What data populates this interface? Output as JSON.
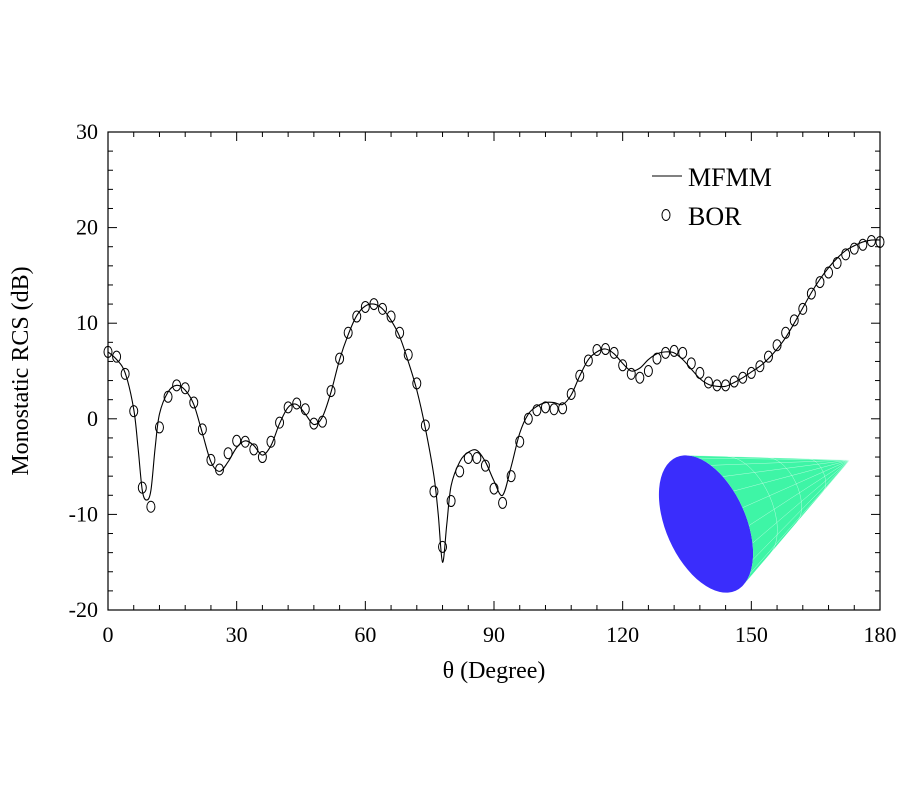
{
  "chart_data": {
    "type": "line",
    "title": "",
    "xlabel": "θ (Degree)",
    "ylabel": "Monostatic RCS (dB)",
    "xlim": [
      0,
      180
    ],
    "ylim": [
      -20,
      30
    ],
    "x_ticks": [
      0,
      30,
      60,
      90,
      120,
      150,
      180
    ],
    "y_ticks": [
      -20,
      -10,
      0,
      10,
      20,
      30
    ],
    "x_tick_labels": [
      "0",
      "30",
      "60",
      "90",
      "120",
      "150",
      "180"
    ],
    "y_tick_labels": [
      "-20",
      "-10",
      "0",
      "10",
      "20",
      "30"
    ],
    "grid": false,
    "legend_position": "top-right",
    "series": [
      {
        "name": "MFMM",
        "style": "solid-line",
        "x": [
          0,
          2,
          4,
          6,
          7,
          8,
          9,
          10,
          11,
          12,
          14,
          16,
          18,
          20,
          22,
          24,
          26,
          28,
          30,
          32,
          34,
          36,
          38,
          40,
          42,
          44,
          46,
          48,
          50,
          52,
          54,
          56,
          58,
          60,
          62,
          64,
          66,
          68,
          70,
          72,
          74,
          76,
          77,
          78,
          79,
          80,
          82,
          84,
          86,
          88,
          90,
          92,
          94,
          96,
          98,
          100,
          102,
          104,
          106,
          108,
          110,
          112,
          114,
          116,
          118,
          120,
          122,
          124,
          126,
          128,
          130,
          132,
          134,
          136,
          138,
          140,
          142,
          144,
          146,
          148,
          150,
          152,
          154,
          156,
          158,
          160,
          162,
          164,
          166,
          168,
          170,
          172,
          174,
          176,
          178,
          180
        ],
        "y": [
          7.0,
          6.2,
          4.8,
          1.0,
          -3.0,
          -7.5,
          -8.5,
          -7.5,
          -3.0,
          0.5,
          2.8,
          3.5,
          3.0,
          1.5,
          -1.5,
          -4.5,
          -5.5,
          -4.5,
          -3.0,
          -2.3,
          -2.8,
          -3.8,
          -2.8,
          -0.5,
          1.2,
          1.5,
          0.5,
          -0.6,
          0.2,
          2.8,
          6.2,
          8.8,
          10.8,
          11.8,
          12.0,
          11.5,
          10.3,
          8.6,
          6.0,
          3.0,
          -1.0,
          -6.0,
          -10.0,
          -15.0,
          -11.0,
          -7.0,
          -4.5,
          -3.5,
          -3.3,
          -4.5,
          -6.5,
          -8.0,
          -5.0,
          -1.5,
          0.5,
          1.3,
          1.7,
          1.7,
          1.5,
          2.5,
          4.5,
          6.2,
          7.0,
          7.3,
          6.8,
          5.8,
          5.0,
          5.3,
          6.2,
          6.8,
          7.0,
          6.9,
          6.2,
          5.2,
          4.2,
          3.6,
          3.4,
          3.4,
          3.8,
          4.3,
          4.9,
          5.5,
          6.3,
          7.3,
          8.5,
          10.0,
          11.6,
          13.2,
          14.6,
          15.8,
          16.8,
          17.6,
          18.1,
          18.5,
          18.7,
          18.7
        ]
      },
      {
        "name": "BOR",
        "style": "open-circle-markers",
        "x": [
          0,
          2,
          4,
          6,
          8,
          10,
          12,
          14,
          16,
          18,
          20,
          22,
          24,
          26,
          28,
          30,
          32,
          34,
          36,
          38,
          40,
          42,
          44,
          46,
          48,
          50,
          52,
          54,
          56,
          58,
          60,
          62,
          64,
          66,
          68,
          70,
          72,
          74,
          76,
          78,
          80,
          82,
          84,
          86,
          88,
          90,
          92,
          94,
          96,
          98,
          100,
          102,
          104,
          106,
          108,
          110,
          112,
          114,
          116,
          118,
          120,
          122,
          124,
          126,
          128,
          130,
          132,
          134,
          136,
          138,
          140,
          142,
          144,
          146,
          148,
          150,
          152,
          154,
          156,
          158,
          160,
          162,
          164,
          166,
          168,
          170,
          172,
          174,
          176,
          178,
          180
        ],
        "y": [
          7.0,
          6.5,
          4.7,
          0.8,
          -7.2,
          -9.2,
          -0.9,
          2.3,
          3.5,
          3.2,
          1.7,
          -1.1,
          -4.3,
          -5.3,
          -3.6,
          -2.3,
          -2.4,
          -3.2,
          -4.0,
          -2.4,
          -0.4,
          1.2,
          1.6,
          1.0,
          -0.5,
          -0.3,
          2.9,
          6.3,
          9.0,
          10.7,
          11.7,
          12.0,
          11.5,
          10.7,
          9.0,
          6.7,
          3.7,
          -0.7,
          -7.6,
          -13.4,
          -8.6,
          -5.5,
          -4.1,
          -4.1,
          -4.9,
          -7.3,
          -8.8,
          -6.0,
          -2.4,
          0.0,
          0.9,
          1.2,
          1.0,
          1.1,
          2.6,
          4.5,
          6.1,
          7.2,
          7.3,
          6.9,
          5.6,
          4.7,
          4.3,
          5.0,
          6.3,
          6.9,
          7.1,
          6.9,
          5.8,
          4.8,
          3.8,
          3.5,
          3.5,
          3.9,
          4.3,
          4.8,
          5.5,
          6.5,
          7.7,
          9.0,
          10.3,
          11.5,
          13.1,
          14.3,
          15.3,
          16.3,
          17.2,
          17.8,
          18.2,
          18.6,
          18.5
        ]
      }
    ]
  },
  "inset": {
    "icon": "cone-mesh-icon",
    "colors": {
      "base": "#3a2dfc",
      "side": "#3ef5a6",
      "mesh": "#ffffff"
    }
  },
  "colors": {
    "axis": "#000000",
    "line": "#000000",
    "marker": "#000000",
    "background": "#ffffff"
  }
}
